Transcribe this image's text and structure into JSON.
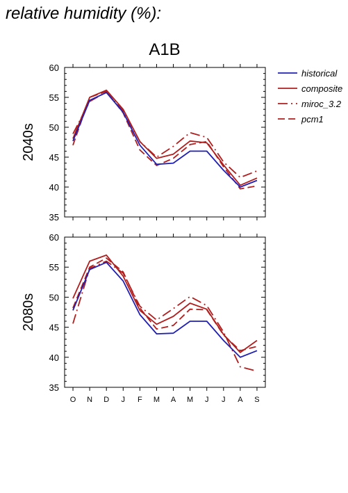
{
  "page_title": "relative humidity (%):",
  "scenario": "A1B",
  "colors": {
    "historical": "#1f1fb4",
    "models": "#b01e1e"
  },
  "legend": [
    {
      "name": "historical",
      "dash": "solid",
      "color": "#1f1fb4"
    },
    {
      "name": "composite",
      "dash": "solid",
      "color": "#b01e1e"
    },
    {
      "name": "miroc_3.2",
      "dash": "dashdot",
      "color": "#b01e1e"
    },
    {
      "name": "pcm1",
      "dash": "dash",
      "color": "#b01e1e"
    }
  ],
  "chart_data": [
    {
      "type": "line",
      "panel_label": "2040s",
      "categories": [
        "O",
        "N",
        "D",
        "J",
        "F",
        "M",
        "A",
        "M",
        "J",
        "J",
        "A",
        "S"
      ],
      "ylim": [
        35,
        60
      ],
      "yticks": [
        35,
        40,
        45,
        50,
        55,
        60
      ],
      "series": [
        {
          "name": "historical",
          "values": [
            47.7,
            54.5,
            55.8,
            52.5,
            47.0,
            43.8,
            44.0,
            46.0,
            46.0,
            42.8,
            40.0,
            41.1
          ]
        },
        {
          "name": "composite",
          "values": [
            48.1,
            55.0,
            56.2,
            53.0,
            47.6,
            44.8,
            45.5,
            47.7,
            47.4,
            43.7,
            40.3,
            41.5
          ]
        },
        {
          "name": "miroc_3.2",
          "values": [
            48.9,
            54.3,
            55.9,
            52.8,
            47.6,
            45.0,
            46.8,
            49.1,
            48.3,
            44.2,
            41.6,
            42.7
          ]
        },
        {
          "name": "pcm1",
          "values": [
            47.0,
            55.0,
            56.0,
            52.4,
            46.2,
            43.6,
            44.8,
            47.1,
            47.6,
            43.4,
            39.7,
            40.2
          ]
        }
      ]
    },
    {
      "type": "line",
      "panel_label": "2080s",
      "categories": [
        "O",
        "N",
        "D",
        "J",
        "F",
        "M",
        "A",
        "M",
        "J",
        "J",
        "A",
        "S"
      ],
      "ylim": [
        35,
        60
      ],
      "yticks": [
        35,
        40,
        45,
        50,
        55,
        60
      ],
      "series": [
        {
          "name": "historical",
          "values": [
            47.8,
            54.6,
            55.8,
            52.7,
            47.1,
            43.9,
            44.0,
            46.0,
            46.0,
            42.8,
            40.0,
            41.1
          ]
        },
        {
          "name": "composite",
          "values": [
            49.8,
            56.0,
            57.0,
            53.5,
            47.8,
            45.5,
            46.8,
            49.0,
            48.0,
            43.8,
            40.8,
            42.8
          ]
        },
        {
          "name": "miroc_3.2",
          "values": [
            45.6,
            54.8,
            56.0,
            54.0,
            48.5,
            46.2,
            48.1,
            50.1,
            48.6,
            44.2,
            38.4,
            37.7
          ]
        },
        {
          "name": "pcm1",
          "values": [
            48.2,
            55.0,
            56.5,
            54.2,
            48.2,
            44.7,
            45.3,
            48.0,
            47.9,
            43.7,
            41.1,
            41.8
          ]
        }
      ]
    }
  ]
}
